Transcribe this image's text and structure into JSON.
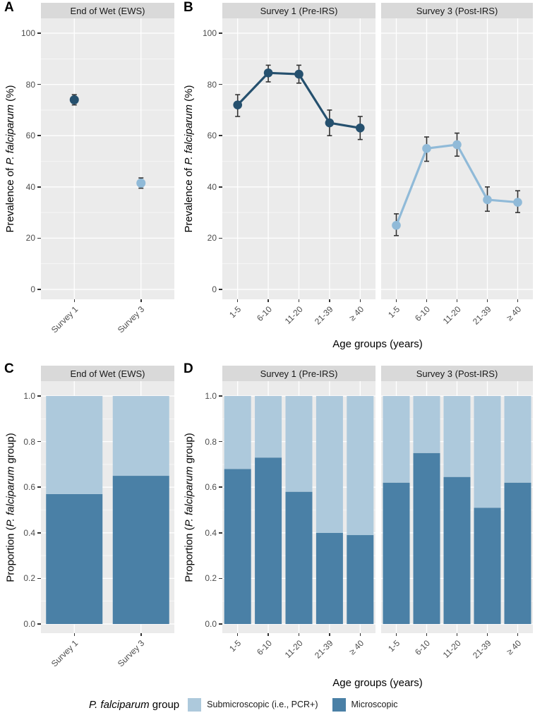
{
  "figure": {
    "colors": {
      "survey1_dark": "#25506e",
      "survey3_light": "#90bad8",
      "microscopic": "#4a80a6",
      "submicroscopic": "#adc9dc",
      "panel_bg": "#ebebeb",
      "strip_bg": "#d9d9d9",
      "grid": "#ffffff",
      "errorbar": "#333333"
    },
    "legend": {
      "title_parts": [
        {
          "text": "P. falciparum",
          "italic": true
        },
        {
          "text": " group",
          "italic": false
        }
      ],
      "items": [
        {
          "label": "Submicroscopic (i.e., PCR+)",
          "color": "#adc9dc"
        },
        {
          "label": "Microscopic",
          "color": "#4a80a6"
        }
      ]
    }
  },
  "chart_data": [
    {
      "panel": "A",
      "type": "pointrange",
      "ylabel_parts": [
        {
          "text": "Prevalence of ",
          "italic": false
        },
        {
          "text": "P. falciparum",
          "italic": true
        },
        {
          "text": " (%)",
          "italic": false
        }
      ],
      "xlabel": "",
      "ylim": [
        0,
        105
      ],
      "yticks": [
        {
          "v": 0,
          "label": "0"
        },
        {
          "v": 20,
          "label": "20"
        },
        {
          "v": 40,
          "label": "40"
        },
        {
          "v": 60,
          "label": "60"
        },
        {
          "v": 80,
          "label": "80"
        },
        {
          "v": 100,
          "label": "100"
        }
      ],
      "facets": [
        {
          "label": "End of Wet (EWS)",
          "categories": [
            "Survey 1",
            "Survey 3"
          ],
          "series": [
            {
              "name": "Survey 1",
              "color": "#25506e",
              "points": [
                {
                  "category": "Survey 1",
                  "y": 74,
                  "lo": 72,
                  "hi": 76
                }
              ]
            },
            {
              "name": "Survey 3",
              "color": "#90bad8",
              "points": [
                {
                  "category": "Survey 3",
                  "y": 41.5,
                  "lo": 39.5,
                  "hi": 43.5
                }
              ]
            }
          ]
        }
      ]
    },
    {
      "panel": "B",
      "type": "line",
      "ylabel_parts": [
        {
          "text": "Prevalence of ",
          "italic": false
        },
        {
          "text": "P. falciparum",
          "italic": true
        },
        {
          "text": " (%)",
          "italic": false
        }
      ],
      "xlabel": "Age groups (years)",
      "ylim": [
        0,
        105
      ],
      "yticks": [
        {
          "v": 0,
          "label": "0"
        },
        {
          "v": 20,
          "label": "20"
        },
        {
          "v": 40,
          "label": "40"
        },
        {
          "v": 60,
          "label": "60"
        },
        {
          "v": 80,
          "label": "80"
        },
        {
          "v": 100,
          "label": "100"
        }
      ],
      "facets": [
        {
          "label": "Survey 1 (Pre-IRS)",
          "color": "#25506e",
          "categories": [
            "1-5",
            "6-10",
            "11-20",
            "21-39",
            "≥ 40"
          ],
          "values": [
            72,
            84.5,
            84,
            65,
            63
          ],
          "lo": [
            67.5,
            81,
            80.5,
            60,
            58.5
          ],
          "hi": [
            76,
            87.5,
            87.5,
            70,
            67.5
          ]
        },
        {
          "label": "Survey 3 (Post-IRS)",
          "color": "#90bad8",
          "categories": [
            "1-5",
            "6-10",
            "11-20",
            "21-39",
            "≥ 40"
          ],
          "values": [
            25,
            55,
            56.5,
            35,
            34
          ],
          "lo": [
            21,
            50,
            52,
            30.5,
            30
          ],
          "hi": [
            29.5,
            59.5,
            61,
            40,
            38.5
          ]
        }
      ]
    },
    {
      "panel": "C",
      "type": "bar-stacked",
      "ylabel_parts": [
        {
          "text": "Proportion (",
          "italic": false
        },
        {
          "text": "P. falciparum",
          "italic": true
        },
        {
          "text": " group)",
          "italic": false
        }
      ],
      "xlabel": "",
      "ylim": [
        0,
        1
      ],
      "yticks": [
        {
          "v": 0,
          "label": "0.0"
        },
        {
          "v": 0.2,
          "label": "0.2"
        },
        {
          "v": 0.4,
          "label": "0.4"
        },
        {
          "v": 0.6,
          "label": "0.6"
        },
        {
          "v": 0.8,
          "label": "0.8"
        },
        {
          "v": 1.0,
          "label": "1.0"
        }
      ],
      "facets": [
        {
          "label": "End of Wet (EWS)",
          "categories": [
            "Survey 1",
            "Survey 3"
          ],
          "series": [
            {
              "name": "Microscopic",
              "color": "#4a80a6",
              "values": [
                0.57,
                0.65
              ]
            },
            {
              "name": "Submicroscopic (i.e., PCR+)",
              "color": "#adc9dc",
              "values": [
                0.43,
                0.35
              ]
            }
          ]
        }
      ]
    },
    {
      "panel": "D",
      "type": "bar-stacked",
      "ylabel_parts": [
        {
          "text": "Proportion (",
          "italic": false
        },
        {
          "text": "P. falciparum",
          "italic": true
        },
        {
          "text": " group)",
          "italic": false
        }
      ],
      "xlabel": "Age groups (years)",
      "ylim": [
        0,
        1
      ],
      "yticks": [
        {
          "v": 0,
          "label": "0.0"
        },
        {
          "v": 0.2,
          "label": "0.2"
        },
        {
          "v": 0.4,
          "label": "0.4"
        },
        {
          "v": 0.6,
          "label": "0.6"
        },
        {
          "v": 0.8,
          "label": "0.8"
        },
        {
          "v": 1.0,
          "label": "1.0"
        }
      ],
      "facets": [
        {
          "label": "Survey 1 (Pre-IRS)",
          "categories": [
            "1-5",
            "6-10",
            "11-20",
            "21-39",
            "≥ 40"
          ],
          "series": [
            {
              "name": "Microscopic",
              "color": "#4a80a6",
              "values": [
                0.68,
                0.73,
                0.58,
                0.4,
                0.39
              ]
            },
            {
              "name": "Submicroscopic (i.e., PCR+)",
              "color": "#adc9dc",
              "values": [
                0.32,
                0.27,
                0.42,
                0.6,
                0.61
              ]
            }
          ]
        },
        {
          "label": "Survey 3 (Post-IRS)",
          "categories": [
            "1-5",
            "6-10",
            "11-20",
            "21-39",
            "≥ 40"
          ],
          "series": [
            {
              "name": "Microscopic",
              "color": "#4a80a6",
              "values": [
                0.62,
                0.75,
                0.645,
                0.51,
                0.62
              ]
            },
            {
              "name": "Submicroscopic (i.e., PCR+)",
              "color": "#adc9dc",
              "values": [
                0.38,
                0.25,
                0.355,
                0.49,
                0.38
              ]
            }
          ]
        }
      ]
    }
  ]
}
